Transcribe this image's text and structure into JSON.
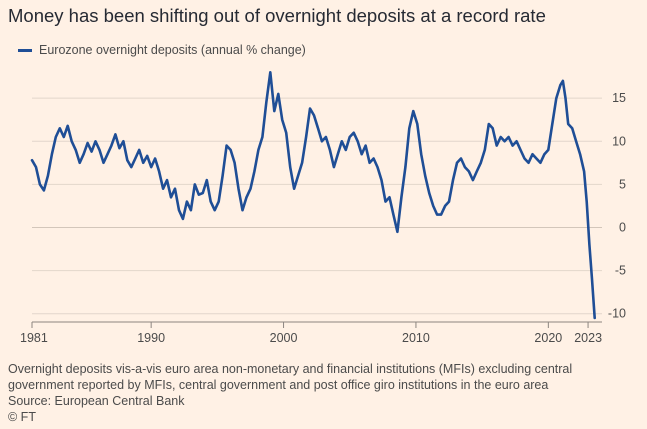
{
  "title": "Money has been shifting out of overnight deposits at a record rate",
  "footnote_lines": [
    "Overnight deposits vis-a-vis euro area non-monetary and financial institutions (MFIs) excluding central",
    "government reported by MFIs, central government and post office giro institutions in the euro area",
    "Source: European Central Bank"
  ],
  "credit": "© FT",
  "colors": {
    "background": "#fff1e5",
    "line": "#1f4e96",
    "grid": "#e2d6cb",
    "text": "#4b4b4b"
  },
  "chart_data": {
    "type": "line",
    "title": "Money has been shifting out of overnight deposits at a record rate",
    "xlabel": "",
    "ylabel": "",
    "xlim": [
      1981.0,
      2023.6
    ],
    "ylim": [
      -10.5,
      18.5
    ],
    "x_ticks": [
      1981,
      1990,
      2000,
      2010,
      2020,
      2023
    ],
    "x_tick_labels": [
      "1981",
      "1990",
      "2000",
      "2010",
      "2020",
      "2023"
    ],
    "y_ticks": [
      -10,
      -5,
      0,
      5,
      10,
      15
    ],
    "y_tick_labels": [
      "-10",
      "-5",
      "0",
      "5",
      "10",
      "15"
    ],
    "grid": "horizontal",
    "legend_position": "top-left",
    "series": [
      {
        "name": "Eurozone overnight deposits (annual % change)",
        "color": "#1f4e96",
        "points": [
          [
            1981.0,
            7.8
          ],
          [
            1981.3,
            7.0
          ],
          [
            1981.6,
            5.0
          ],
          [
            1981.9,
            4.3
          ],
          [
            1982.2,
            6.0
          ],
          [
            1982.5,
            8.5
          ],
          [
            1982.8,
            10.5
          ],
          [
            1983.1,
            11.5
          ],
          [
            1983.4,
            10.5
          ],
          [
            1983.7,
            11.8
          ],
          [
            1984.0,
            10.0
          ],
          [
            1984.3,
            9.0
          ],
          [
            1984.6,
            7.5
          ],
          [
            1984.9,
            8.5
          ],
          [
            1985.2,
            9.8
          ],
          [
            1985.5,
            8.8
          ],
          [
            1985.8,
            10.0
          ],
          [
            1986.1,
            9.0
          ],
          [
            1986.4,
            7.5
          ],
          [
            1986.7,
            8.5
          ],
          [
            1987.0,
            9.5
          ],
          [
            1987.3,
            10.8
          ],
          [
            1987.6,
            9.2
          ],
          [
            1987.9,
            10.0
          ],
          [
            1988.2,
            7.8
          ],
          [
            1988.5,
            7.0
          ],
          [
            1988.8,
            8.0
          ],
          [
            1989.1,
            9.0
          ],
          [
            1989.4,
            7.5
          ],
          [
            1989.7,
            8.3
          ],
          [
            1990.0,
            7.0
          ],
          [
            1990.3,
            8.0
          ],
          [
            1990.6,
            6.5
          ],
          [
            1990.9,
            4.5
          ],
          [
            1991.2,
            5.5
          ],
          [
            1991.5,
            3.5
          ],
          [
            1991.8,
            4.5
          ],
          [
            1992.1,
            2.0
          ],
          [
            1992.4,
            1.0
          ],
          [
            1992.7,
            3.0
          ],
          [
            1993.0,
            2.0
          ],
          [
            1993.3,
            5.0
          ],
          [
            1993.6,
            3.8
          ],
          [
            1993.9,
            4.0
          ],
          [
            1994.2,
            5.5
          ],
          [
            1994.5,
            3.0
          ],
          [
            1994.8,
            2.0
          ],
          [
            1995.1,
            3.0
          ],
          [
            1995.4,
            6.0
          ],
          [
            1995.7,
            9.5
          ],
          [
            1996.0,
            9.0
          ],
          [
            1996.3,
            7.5
          ],
          [
            1996.6,
            4.5
          ],
          [
            1996.9,
            2.0
          ],
          [
            1997.2,
            3.5
          ],
          [
            1997.5,
            4.5
          ],
          [
            1997.8,
            6.5
          ],
          [
            1998.1,
            9.0
          ],
          [
            1998.4,
            10.5
          ],
          [
            1998.7,
            14.5
          ],
          [
            1999.0,
            18.0
          ],
          [
            1999.3,
            13.5
          ],
          [
            1999.6,
            15.5
          ],
          [
            1999.9,
            12.5
          ],
          [
            2000.2,
            11.0
          ],
          [
            2000.5,
            7.0
          ],
          [
            2000.8,
            4.5
          ],
          [
            2001.1,
            6.0
          ],
          [
            2001.4,
            7.5
          ],
          [
            2001.7,
            10.5
          ],
          [
            2002.0,
            13.8
          ],
          [
            2002.3,
            13.0
          ],
          [
            2002.6,
            11.5
          ],
          [
            2002.9,
            10.0
          ],
          [
            2003.2,
            10.5
          ],
          [
            2003.5,
            9.0
          ],
          [
            2003.8,
            7.0
          ],
          [
            2004.1,
            8.5
          ],
          [
            2004.4,
            10.0
          ],
          [
            2004.7,
            9.0
          ],
          [
            2005.0,
            10.5
          ],
          [
            2005.3,
            11.0
          ],
          [
            2005.6,
            10.0
          ],
          [
            2005.9,
            8.5
          ],
          [
            2006.2,
            9.5
          ],
          [
            2006.5,
            7.5
          ],
          [
            2006.8,
            8.0
          ],
          [
            2007.1,
            7.0
          ],
          [
            2007.4,
            5.5
          ],
          [
            2007.7,
            3.0
          ],
          [
            2008.0,
            3.5
          ],
          [
            2008.3,
            1.5
          ],
          [
            2008.6,
            -0.5
          ],
          [
            2008.9,
            3.5
          ],
          [
            2009.2,
            7.0
          ],
          [
            2009.5,
            11.5
          ],
          [
            2009.8,
            13.5
          ],
          [
            2010.1,
            12.0
          ],
          [
            2010.4,
            8.5
          ],
          [
            2010.7,
            6.0
          ],
          [
            2011.0,
            4.0
          ],
          [
            2011.3,
            2.5
          ],
          [
            2011.6,
            1.5
          ],
          [
            2011.9,
            1.5
          ],
          [
            2012.2,
            2.5
          ],
          [
            2012.5,
            3.0
          ],
          [
            2012.8,
            5.5
          ],
          [
            2013.1,
            7.5
          ],
          [
            2013.4,
            8.0
          ],
          [
            2013.7,
            7.0
          ],
          [
            2014.0,
            6.5
          ],
          [
            2014.3,
            5.5
          ],
          [
            2014.6,
            6.5
          ],
          [
            2014.9,
            7.5
          ],
          [
            2015.2,
            9.0
          ],
          [
            2015.5,
            12.0
          ],
          [
            2015.8,
            11.5
          ],
          [
            2016.1,
            9.5
          ],
          [
            2016.4,
            10.5
          ],
          [
            2016.7,
            10.0
          ],
          [
            2017.0,
            10.5
          ],
          [
            2017.3,
            9.5
          ],
          [
            2017.6,
            10.0
          ],
          [
            2017.9,
            9.0
          ],
          [
            2018.2,
            8.0
          ],
          [
            2018.5,
            7.5
          ],
          [
            2018.8,
            8.5
          ],
          [
            2019.1,
            8.0
          ],
          [
            2019.4,
            7.5
          ],
          [
            2019.7,
            8.5
          ],
          [
            2020.0,
            9.0
          ],
          [
            2020.3,
            12.0
          ],
          [
            2020.6,
            15.0
          ],
          [
            2020.9,
            16.5
          ],
          [
            2021.1,
            17.0
          ],
          [
            2021.3,
            15.0
          ],
          [
            2021.5,
            12.0
          ],
          [
            2021.8,
            11.5
          ],
          [
            2022.1,
            10.0
          ],
          [
            2022.4,
            8.5
          ],
          [
            2022.7,
            6.5
          ],
          [
            2022.9,
            3.0
          ],
          [
            2023.1,
            -2.0
          ],
          [
            2023.3,
            -6.0
          ],
          [
            2023.5,
            -10.5
          ]
        ]
      }
    ]
  }
}
